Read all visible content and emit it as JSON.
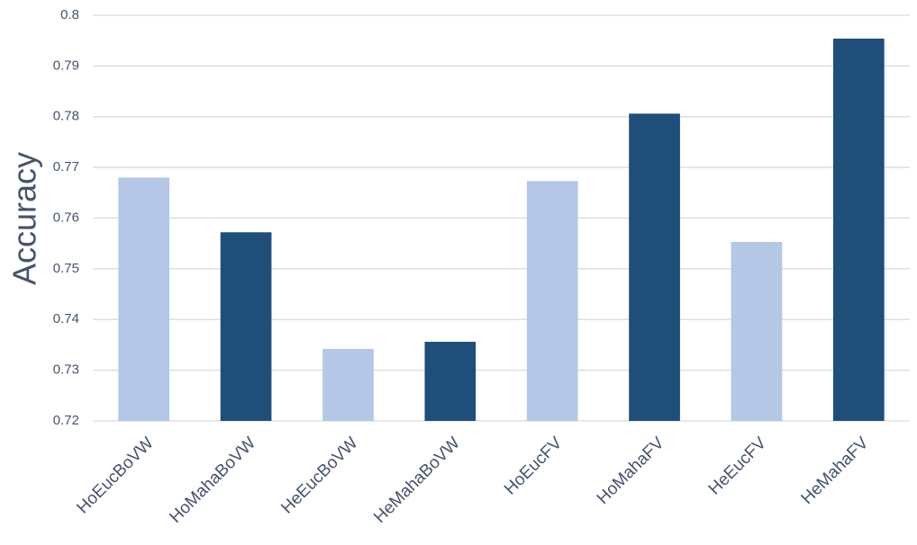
{
  "chart_data": {
    "type": "bar",
    "y_label": "Accuracy",
    "categories": [
      "HoEucBoVW",
      "HoMahaBoVW",
      "HeEucBoVW",
      "HeMahaBoVW",
      "HoEucFV",
      "HoMahaFV",
      "HeEucFV",
      "HeMahaFV"
    ],
    "values": [
      0.768,
      0.7572,
      0.7342,
      0.7356,
      0.7673,
      0.7806,
      0.7553,
      0.7954
    ],
    "colors": [
      "#b4c7e7",
      "#1f4e79",
      "#b4c7e7",
      "#1f4e79",
      "#b4c7e7",
      "#1f4e79",
      "#b4c7e7",
      "#1f4e79"
    ],
    "ylim": [
      0.72,
      0.8
    ],
    "yticks": [
      0.72,
      0.73,
      0.74,
      0.75,
      0.76,
      0.77,
      0.78,
      0.79,
      0.8
    ],
    "grid": true
  }
}
